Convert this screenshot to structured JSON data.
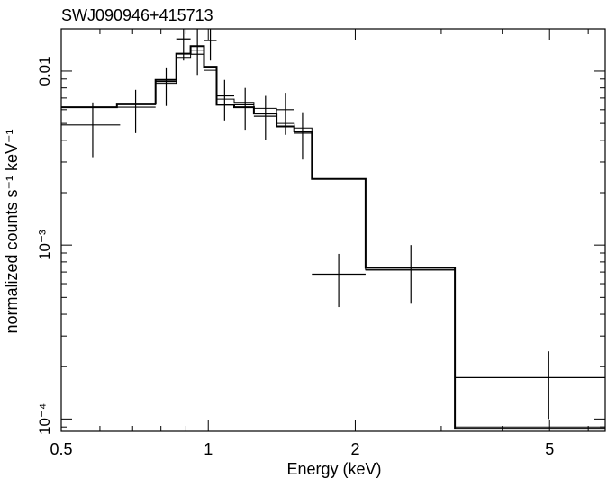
{
  "chart_data": {
    "type": "line",
    "title": "SWJ090946+415713",
    "xlabel": "Energy (keV)",
    "ylabel": "normalized counts s⁻¹ keV⁻¹",
    "x_scale": "log",
    "y_scale": "log",
    "xlim": [
      0.5,
      6.5
    ],
    "ylim": [
      8.5e-05,
      0.0175
    ],
    "x_ticks": [
      {
        "value": 0.5,
        "label": "0.5"
      },
      {
        "value": 1,
        "label": "1"
      },
      {
        "value": 2,
        "label": "2"
      },
      {
        "value": 5,
        "label": "5"
      }
    ],
    "y_ticks": [
      {
        "value": 0.01,
        "label": "0.01"
      },
      {
        "value": 0.001,
        "label": "10⁻³"
      },
      {
        "value": 0.0001,
        "label": "10⁻⁴"
      }
    ],
    "grid": false,
    "data_points": [
      {
        "xlo": 0.5,
        "xhi": 0.66,
        "x": 0.58,
        "y": 0.0049,
        "ylo": 0.0032,
        "yhi": 0.0066
      },
      {
        "xlo": 0.65,
        "xhi": 0.78,
        "x": 0.71,
        "y": 0.0062,
        "ylo": 0.0044,
        "yhi": 0.0078
      },
      {
        "xlo": 0.78,
        "xhi": 0.86,
        "x": 0.82,
        "y": 0.0087,
        "ylo": 0.0063,
        "yhi": 0.0105
      },
      {
        "xlo": 0.86,
        "xhi": 0.92,
        "x": 0.89,
        "y": 0.0153,
        "ylo": 0.0115,
        "yhi": 0.0175
      },
      {
        "xlo": 0.92,
        "xhi": 0.98,
        "x": 0.95,
        "y": 0.0125,
        "ylo": 0.0095,
        "yhi": 0.0175
      },
      {
        "xlo": 0.98,
        "xhi": 1.04,
        "x": 1.01,
        "y": 0.015,
        "ylo": 0.0115,
        "yhi": 0.0175
      },
      {
        "xlo": 1.04,
        "xhi": 1.13,
        "x": 1.08,
        "y": 0.0072,
        "ylo": 0.0052,
        "yhi": 0.0089
      },
      {
        "xlo": 1.13,
        "xhi": 1.24,
        "x": 1.19,
        "y": 0.0064,
        "ylo": 0.0046,
        "yhi": 0.008
      },
      {
        "xlo": 1.24,
        "xhi": 1.38,
        "x": 1.31,
        "y": 0.0055,
        "ylo": 0.004,
        "yhi": 0.0072
      },
      {
        "xlo": 1.38,
        "xhi": 1.5,
        "x": 1.44,
        "y": 0.006,
        "ylo": 0.0043,
        "yhi": 0.0075
      },
      {
        "xlo": 1.5,
        "xhi": 1.63,
        "x": 1.56,
        "y": 0.0044,
        "ylo": 0.0031,
        "yhi": 0.0058
      },
      {
        "xlo": 1.63,
        "xhi": 2.1,
        "x": 1.85,
        "y": 0.00068,
        "ylo": 0.00044,
        "yhi": 0.00089
      },
      {
        "xlo": 2.1,
        "xhi": 3.2,
        "x": 2.6,
        "y": 0.00072,
        "ylo": 0.00046,
        "yhi": 0.001
      },
      {
        "xlo": 3.2,
        "xhi": 6.5,
        "x": 4.98,
        "y": 0.000173,
        "ylo": 0.0001,
        "yhi": 0.000245
      }
    ],
    "models": [
      {
        "edges": [
          0.5,
          0.65,
          0.78,
          0.86,
          0.92,
          0.98,
          1.04,
          1.13,
          1.24,
          1.38,
          1.5,
          1.63,
          2.1,
          3.2,
          6.5
        ],
        "values": [
          0.0062,
          0.0065,
          0.0089,
          0.0126,
          0.0139,
          0.0106,
          0.0064,
          0.0062,
          0.0057,
          0.0048,
          0.0045,
          0.0024,
          0.00074,
          8.8e-05
        ],
        "stroke_width": 2.0
      },
      {
        "edges": [
          0.5,
          0.65,
          0.78,
          0.86,
          0.92,
          0.98,
          1.04,
          1.13,
          1.24,
          1.38,
          1.5,
          1.63,
          2.1,
          3.2,
          6.5
        ],
        "values": [
          0.0062,
          0.0064,
          0.0085,
          0.012,
          0.0132,
          0.0101,
          0.0069,
          0.0066,
          0.0061,
          0.005,
          0.0047,
          0.0024,
          0.00072,
          9e-05
        ],
        "stroke_width": 1.0
      }
    ]
  }
}
